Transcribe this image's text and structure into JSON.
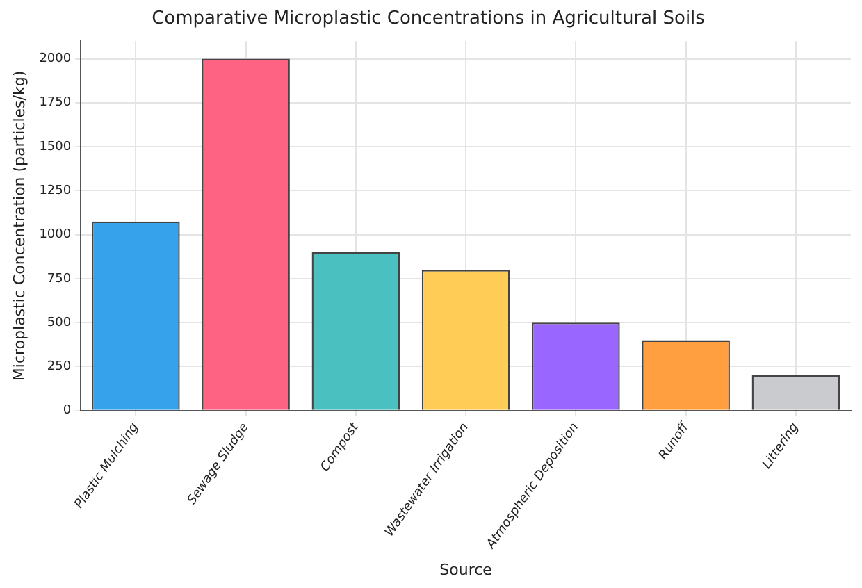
{
  "chart_data": {
    "type": "bar",
    "title": "Comparative Microplastic Concentrations in Agricultural Soils",
    "xlabel": "Source",
    "ylabel": "Microplastic Concentration (particles/kg)",
    "categories": [
      "Plastic Mulching",
      "Sewage Sludge",
      "Compost",
      "Wastewater Irrigation",
      "Atmospheric Deposition",
      "Runoff",
      "Littering"
    ],
    "values": [
      1075,
      2000,
      900,
      800,
      500,
      400,
      200
    ],
    "colors": [
      "#36a2eb",
      "#ff6384",
      "#4bc0c0",
      "#ffcd56",
      "#9966ff",
      "#ff9f40",
      "#c9cbcf"
    ],
    "ylim": [
      0,
      2100
    ],
    "yticks": [
      0,
      250,
      500,
      750,
      1000,
      1250,
      1500,
      1750,
      2000
    ],
    "grid": true
  }
}
